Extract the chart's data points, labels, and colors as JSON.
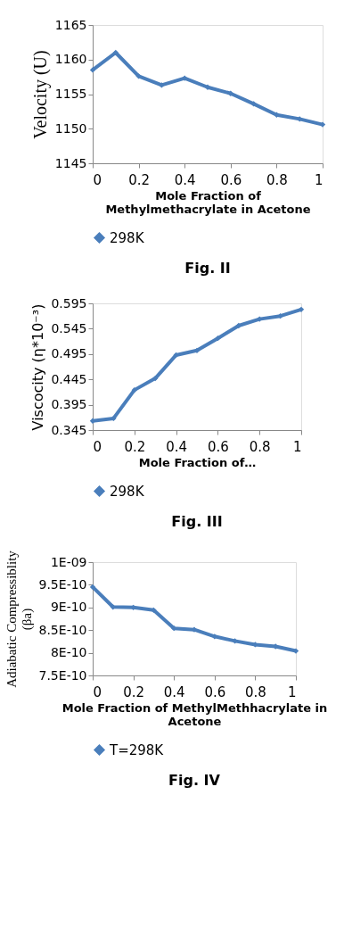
{
  "chart_data": [
    {
      "type": "line",
      "ylabel": "Velocity (U)",
      "xlabel": "Mole Fraction of Methylmethacrylate in Acetone",
      "annotations": [
        "Fig. II"
      ],
      "x": [
        0,
        0.1,
        0.2,
        0.3,
        0.4,
        0.5,
        0.6,
        0.7,
        0.8,
        0.9,
        1
      ],
      "xlim": [
        0,
        1
      ],
      "xticks": [
        0,
        0.2,
        0.4,
        0.6,
        0.8,
        1
      ],
      "ylim": [
        1145,
        1165
      ],
      "yticks": [
        1145,
        1150,
        1155,
        1160,
        1165
      ],
      "marker": "diamond",
      "legend": "bottom",
      "grid": false,
      "series": [
        {
          "name": "298K",
          "color": "#4a7ebb",
          "values": [
            1158.5,
            1161.0,
            1157.6,
            1156.3,
            1157.3,
            1156.0,
            1155.1,
            1153.6,
            1152.0,
            1151.4,
            1150.6
          ]
        }
      ]
    },
    {
      "type": "line",
      "ylabel": "Viscocity (η*10⁻³)",
      "xlabel": "Mole Fraction of…",
      "annotations": [
        "Fig. III"
      ],
      "x": [
        0,
        0.1,
        0.2,
        0.3,
        0.4,
        0.5,
        0.6,
        0.7,
        0.8,
        0.9,
        1
      ],
      "xlim": [
        0,
        1
      ],
      "xticks": [
        0,
        0.2,
        0.4,
        0.6,
        0.8,
        1
      ],
      "ylim": [
        0.345,
        0.595
      ],
      "yticks": [
        0.345,
        0.395,
        0.445,
        0.495,
        0.545,
        0.595
      ],
      "marker": "diamond",
      "legend": "bottom",
      "grid": false,
      "series": [
        {
          "name": "298K",
          "color": "#4a7ebb",
          "values": [
            0.363,
            0.368,
            0.424,
            0.447,
            0.493,
            0.502,
            0.526,
            0.551,
            0.564,
            0.57,
            0.583
          ]
        }
      ]
    },
    {
      "type": "line",
      "ylabel": "Adiabatic Compressiblity (βa)",
      "xlabel": "Mole Fraction of MethylMethhacrylate in Acetone",
      "annotations": [
        "Fig. IV"
      ],
      "x": [
        0,
        0.1,
        0.2,
        0.3,
        0.4,
        0.5,
        0.6,
        0.7,
        0.8,
        0.9,
        1
      ],
      "xlim": [
        0,
        1
      ],
      "xticks": [
        0,
        0.2,
        0.4,
        0.6,
        0.8,
        1
      ],
      "ylim": [
        7.5e-10,
        1e-09
      ],
      "yticks": [
        {
          "value": 7.5e-10,
          "label": "7.5E-10"
        },
        {
          "value": 8e-10,
          "label": "8E-10"
        },
        {
          "value": 8.5e-10,
          "label": "8.5E-10"
        },
        {
          "value": 9e-10,
          "label": "9E-10"
        },
        {
          "value": 9.5e-10,
          "label": "9.5E-10"
        },
        {
          "value": 1e-09,
          "label": "1E-09"
        }
      ],
      "marker": "diamond",
      "legend": "bottom",
      "grid": false,
      "series": [
        {
          "name": "T=298K",
          "color": "#4a7ebb",
          "values": [
            9.45e-10,
            9.01e-10,
            9e-10,
            8.94e-10,
            8.54e-10,
            8.51e-10,
            8.36e-10,
            8.26e-10,
            8.18e-10,
            8.14e-10,
            8.04e-10
          ]
        }
      ]
    }
  ]
}
